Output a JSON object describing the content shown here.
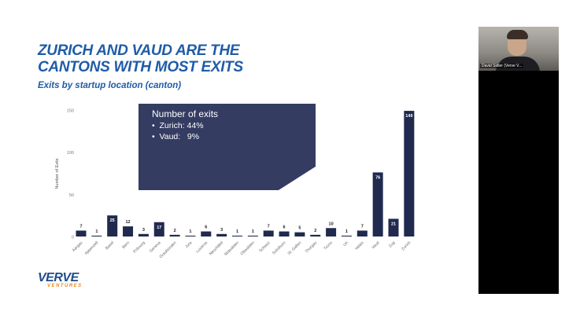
{
  "slide": {
    "title": "ZURICH AND VAUD ARE THE CANTONS WITH MOST EXITS",
    "subtitle": "Exits by startup location (canton)",
    "callout": {
      "title": "Number of exits",
      "bullets": [
        "Zurich: 44%",
        "Vaud:   9%"
      ]
    },
    "logo": {
      "brand": "VERVE",
      "tagline": "VENTURES"
    }
  },
  "webcam": {
    "participant_name": "David Sidler (Verve V..."
  },
  "colors": {
    "bar": "#202a4e",
    "title": "#1f5ca8",
    "callout": "#343c62",
    "logo_accent": "#e88a2a"
  },
  "chart_data": {
    "type": "bar",
    "ylabel": "Number of Exits",
    "ylim": [
      0,
      150
    ],
    "yticks": [
      0,
      50,
      100,
      150
    ],
    "grid": false,
    "categories": [
      "Aargau",
      "Appenzell",
      "Basel",
      "Bern",
      "Fribourg",
      "Geneva",
      "Graubünden",
      "Jura",
      "Lucerne",
      "Neuchâtel",
      "Nidwalden",
      "Obwalden",
      "Schwyz",
      "Solothurn",
      "St. Gallen",
      "Thurgau",
      "Ticino",
      "Uri",
      "Valais",
      "Vaud",
      "Zug",
      "Zurich"
    ],
    "values": [
      7,
      1,
      25,
      12,
      3,
      17,
      2,
      1,
      6,
      3,
      1,
      1,
      7,
      6,
      5,
      2,
      10,
      1,
      7,
      76,
      21,
      149
    ]
  }
}
